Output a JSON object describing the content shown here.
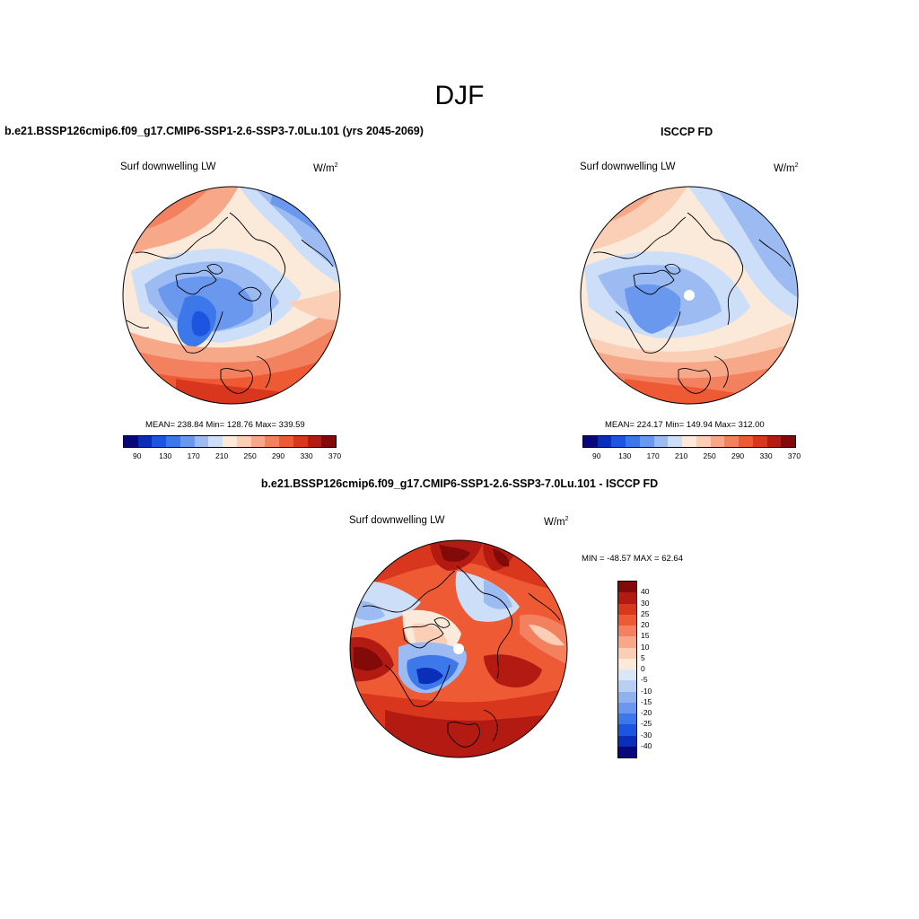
{
  "main_title": "DJF",
  "panels": {
    "model": {
      "title": "b.e21.BSSP126cmip6.f09_g17.CMIP6-SSP1-2.6-SSP3-7.0Lu.101 (yrs 2045-2069)",
      "variable": "Surf downwelling LW",
      "unit_base": "W/m",
      "unit_exp": "2",
      "stats": "MEAN= 238.84  Min= 128.76  Max= 339.59"
    },
    "obs": {
      "title": "ISCCP FD",
      "variable": "Surf downwelling LW",
      "unit_base": "W/m",
      "unit_exp": "2",
      "stats": "MEAN= 224.17  Min= 149.94  Max= 312.00"
    },
    "diff": {
      "title": "b.e21.BSSP126cmip6.f09_g17.CMIP6-SSP1-2.6-SSP3-7.0Lu.101 - ISCCP FD",
      "variable": "Surf downwelling LW",
      "unit_base": "W/m",
      "unit_exp": "2",
      "stats": "MIN = -48.57 MAX =  62.64"
    }
  },
  "colorbar_abs": {
    "colors": [
      "#08087a",
      "#0b2eb8",
      "#1d55e0",
      "#3c78ea",
      "#6a98ee",
      "#9bbbf2",
      "#cddff8",
      "#fbe9da",
      "#fbcfb5",
      "#f7a889",
      "#f3805f",
      "#ed5a33",
      "#d9361e",
      "#b31b12",
      "#820a08"
    ],
    "tick_labels": [
      "90",
      "130",
      "170",
      "210",
      "250",
      "290",
      "330",
      "370"
    ]
  },
  "colorbar_diff": {
    "colors": [
      "#820a08",
      "#b31b12",
      "#d9361e",
      "#ed5a33",
      "#f3805f",
      "#f7a889",
      "#fbcfb5",
      "#fbe9da",
      "#d9e7f8",
      "#b6cff3",
      "#8fb2ee",
      "#6a98ee",
      "#3c78ea",
      "#1d55e0",
      "#0b2eb8",
      "#08087a"
    ],
    "tick_labels": [
      "40",
      "30",
      "25",
      "20",
      "15",
      "10",
      "5",
      "0",
      "-5",
      "-10",
      "-15",
      "-20",
      "-25",
      "-30",
      "-40"
    ]
  }
}
